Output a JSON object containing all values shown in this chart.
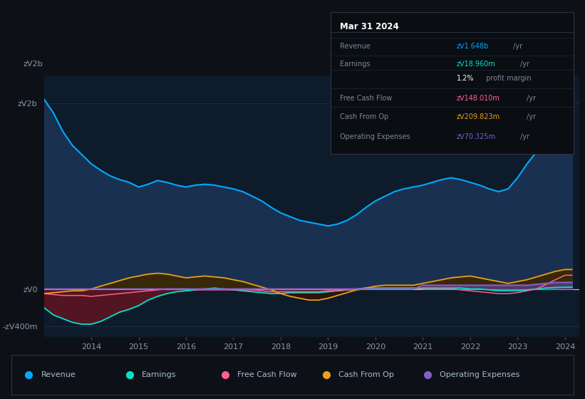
{
  "bg_color": "#0d1117",
  "plot_bg_color": "#0d1b2a",
  "title": "Mar 31 2024",
  "ylabel_top": "zᐯ2b",
  "ylabel_zero": "zᐯ0",
  "ylabel_neg": "-zᐯ400m",
  "years": [
    2013.0,
    2013.2,
    2013.4,
    2013.6,
    2013.8,
    2014.0,
    2014.2,
    2014.4,
    2014.6,
    2014.8,
    2015.0,
    2015.2,
    2015.4,
    2015.6,
    2015.8,
    2016.0,
    2016.2,
    2016.4,
    2016.6,
    2016.8,
    2017.0,
    2017.2,
    2017.4,
    2017.6,
    2017.8,
    2018.0,
    2018.2,
    2018.4,
    2018.6,
    2018.8,
    2019.0,
    2019.2,
    2019.4,
    2019.6,
    2019.8,
    2020.0,
    2020.2,
    2020.4,
    2020.6,
    2020.8,
    2021.0,
    2021.2,
    2021.4,
    2021.6,
    2021.8,
    2022.0,
    2022.2,
    2022.4,
    2022.6,
    2022.8,
    2023.0,
    2023.2,
    2023.4,
    2023.6,
    2023.8,
    2024.0,
    2024.15
  ],
  "revenue": [
    2.05,
    1.9,
    1.7,
    1.55,
    1.45,
    1.35,
    1.28,
    1.22,
    1.18,
    1.15,
    1.1,
    1.13,
    1.17,
    1.15,
    1.12,
    1.1,
    1.12,
    1.13,
    1.12,
    1.1,
    1.08,
    1.05,
    1.0,
    0.95,
    0.88,
    0.82,
    0.78,
    0.74,
    0.72,
    0.7,
    0.68,
    0.7,
    0.74,
    0.8,
    0.88,
    0.95,
    1.0,
    1.05,
    1.08,
    1.1,
    1.12,
    1.15,
    1.18,
    1.2,
    1.18,
    1.15,
    1.12,
    1.08,
    1.05,
    1.08,
    1.2,
    1.35,
    1.48,
    1.56,
    1.62,
    1.648,
    1.648
  ],
  "earnings": [
    -0.2,
    -0.28,
    -0.32,
    -0.36,
    -0.38,
    -0.38,
    -0.35,
    -0.3,
    -0.25,
    -0.22,
    -0.18,
    -0.12,
    -0.08,
    -0.05,
    -0.03,
    -0.02,
    -0.01,
    0.0,
    0.01,
    0.0,
    -0.01,
    -0.02,
    -0.03,
    -0.04,
    -0.05,
    -0.05,
    -0.04,
    -0.04,
    -0.04,
    -0.04,
    -0.03,
    -0.02,
    -0.01,
    0.0,
    0.01,
    0.01,
    0.01,
    0.01,
    0.01,
    0.01,
    0.01,
    0.01,
    0.01,
    0.01,
    0.01,
    0.0,
    0.0,
    -0.01,
    -0.02,
    -0.02,
    -0.02,
    -0.01,
    0.0,
    0.01,
    0.015,
    0.019,
    0.019
  ],
  "free_cash_flow": [
    -0.05,
    -0.06,
    -0.07,
    -0.07,
    -0.07,
    -0.08,
    -0.07,
    -0.06,
    -0.05,
    -0.04,
    -0.03,
    -0.02,
    -0.01,
    0.0,
    0.0,
    0.0,
    -0.01,
    -0.01,
    -0.01,
    -0.01,
    -0.01,
    -0.01,
    -0.01,
    -0.02,
    -0.03,
    -0.03,
    -0.03,
    -0.03,
    -0.03,
    -0.03,
    -0.02,
    -0.02,
    -0.01,
    -0.01,
    0.0,
    0.0,
    0.0,
    0.0,
    0.0,
    0.0,
    0.0,
    0.0,
    0.0,
    0.0,
    -0.01,
    -0.02,
    -0.03,
    -0.04,
    -0.05,
    -0.05,
    -0.04,
    -0.02,
    0.0,
    0.05,
    0.1,
    0.148,
    0.148
  ],
  "cash_from_op": [
    -0.05,
    -0.04,
    -0.03,
    -0.02,
    -0.02,
    0.0,
    0.03,
    0.06,
    0.09,
    0.12,
    0.14,
    0.16,
    0.17,
    0.16,
    0.14,
    0.12,
    0.13,
    0.14,
    0.13,
    0.12,
    0.1,
    0.08,
    0.05,
    0.02,
    -0.01,
    -0.05,
    -0.08,
    -0.1,
    -0.12,
    -0.12,
    -0.1,
    -0.07,
    -0.04,
    -0.01,
    0.01,
    0.03,
    0.04,
    0.04,
    0.04,
    0.04,
    0.06,
    0.08,
    0.1,
    0.12,
    0.13,
    0.14,
    0.12,
    0.1,
    0.08,
    0.06,
    0.08,
    0.1,
    0.13,
    0.16,
    0.19,
    0.2098,
    0.2098
  ],
  "op_expenses": [
    0.0,
    0.0,
    0.0,
    0.0,
    0.0,
    0.0,
    0.0,
    0.0,
    0.0,
    0.0,
    0.0,
    0.0,
    0.0,
    0.0,
    0.0,
    0.0,
    0.0,
    0.0,
    0.0,
    0.0,
    0.0,
    0.0,
    0.0,
    0.0,
    0.0,
    0.0,
    0.0,
    0.0,
    0.0,
    0.0,
    0.0,
    0.0,
    0.0,
    0.0,
    0.0,
    0.0,
    0.0,
    0.0,
    0.0,
    0.0,
    0.04,
    0.04,
    0.04,
    0.04,
    0.04,
    0.04,
    0.04,
    0.04,
    0.04,
    0.04,
    0.04,
    0.04,
    0.05,
    0.06,
    0.07,
    0.07033,
    0.07033
  ],
  "colors": {
    "revenue": "#00aaff",
    "revenue_fill": "#1a3050",
    "earnings_line": "#00e5cc",
    "earnings_fill_pos": "#1a4030",
    "earnings_fill_neg": "#5a1520",
    "free_cash_flow": "#ff6090",
    "cash_from_op": "#e8a020",
    "op_expenses": "#8060c8",
    "zero_line": "#cccccc"
  },
  "xlim": [
    2013.0,
    2024.3
  ],
  "ylim": [
    -0.52,
    2.3
  ],
  "ytick_positions": [
    -0.4,
    0.0,
    2.0
  ],
  "ytick_labels": [
    "-zᐯ400m",
    "zᐯ0",
    "zᐯ2b"
  ],
  "xticks": [
    2014,
    2015,
    2016,
    2017,
    2018,
    2019,
    2020,
    2021,
    2022,
    2023,
    2024
  ],
  "tooltip_rows": [
    {
      "label": "Revenue",
      "value": "zᐯ1.648b",
      "suffix": " /yr",
      "value_color": "#00aaff"
    },
    {
      "label": "Earnings",
      "value": "zᐯ18.960m",
      "suffix": " /yr",
      "value_color": "#00e5cc"
    },
    {
      "label": "",
      "value": "1.2%",
      "suffix": " profit margin",
      "value_color": "#ffffff"
    },
    {
      "label": "Free Cash Flow",
      "value": "zᐯ148.010m",
      "suffix": " /yr",
      "value_color": "#ff6090"
    },
    {
      "label": "Cash From Op",
      "value": "zᐯ209.823m",
      "suffix": " /yr",
      "value_color": "#e8a020"
    },
    {
      "label": "Operating Expenses",
      "value": "zᐯ70.325m",
      "suffix": " /yr",
      "value_color": "#8060c8"
    }
  ],
  "legend": [
    {
      "label": "Revenue",
      "color": "#00aaff"
    },
    {
      "label": "Earnings",
      "color": "#00e5cc"
    },
    {
      "label": "Free Cash Flow",
      "color": "#ff6090"
    },
    {
      "label": "Cash From Op",
      "color": "#e8a020"
    },
    {
      "label": "Operating Expenses",
      "color": "#8060c8"
    }
  ]
}
